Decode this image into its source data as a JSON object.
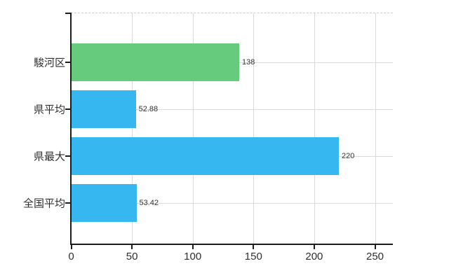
{
  "chart_data": {
    "type": "bar",
    "orientation": "horizontal",
    "title": "",
    "categories": [
      "駿河区",
      "県平均",
      "県最大",
      "全国平均"
    ],
    "values": [
      138,
      52.88,
      220,
      53.42
    ],
    "value_labels": [
      "138",
      "52.88",
      "220",
      "53.42"
    ],
    "bar_colors": [
      "#66cb7d",
      "#37b7f0",
      "#37b7f0",
      "#37b7f0"
    ],
    "x_ticks": [
      0,
      50,
      100,
      150,
      200,
      250
    ],
    "x_tick_labels": [
      "0",
      "50",
      "100",
      "150",
      "200",
      "250"
    ],
    "xlim": [
      0,
      264
    ],
    "grid": true,
    "legend": false,
    "colors": {
      "background": "#ffffff",
      "grid": "#d9d9d9",
      "plot_border_dashed": "#cccccc",
      "axis": "#1c1c1c",
      "category_text": "#2e2e2e",
      "value_text": "#333333",
      "bar_green": "#66cb7d",
      "bar_blue": "#37b7f0"
    }
  }
}
